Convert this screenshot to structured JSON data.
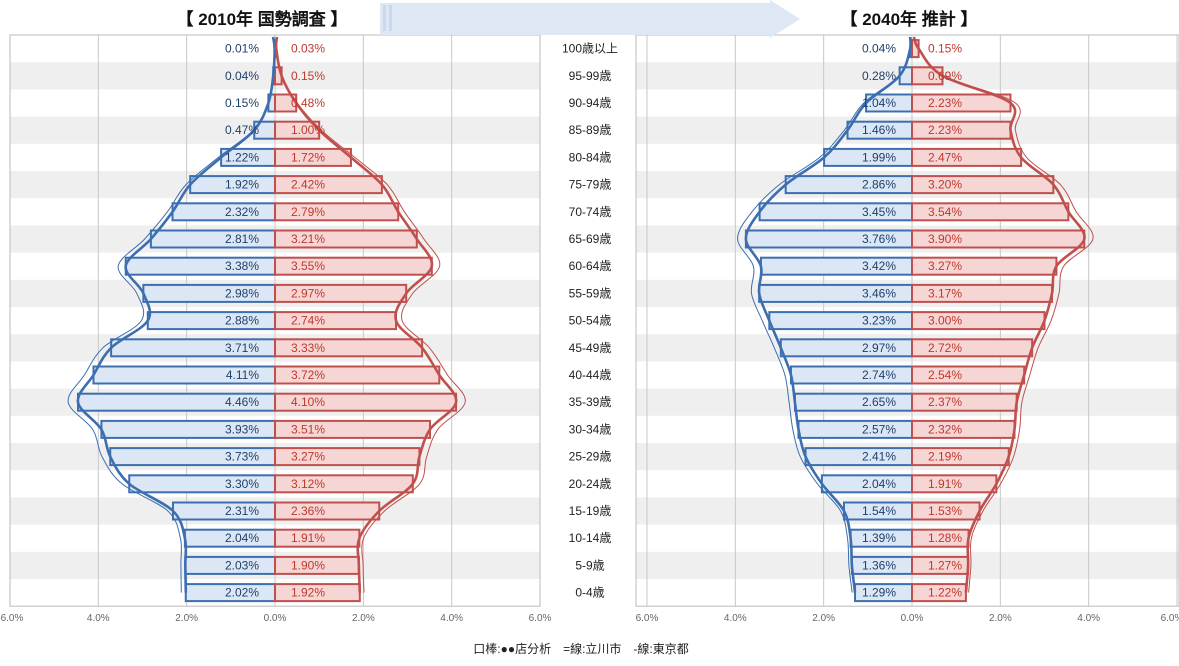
{
  "chart_data": {
    "type": "bar",
    "categories": [
      "100歳以上",
      "95-99歳",
      "90-94歳",
      "85-89歳",
      "80-84歳",
      "75-79歳",
      "70-74歳",
      "65-69歳",
      "60-64歳",
      "55-59歳",
      "50-54歳",
      "45-49歳",
      "40-44歳",
      "35-39歳",
      "30-34歳",
      "25-29歳",
      "20-24歳",
      "15-19歳",
      "10-14歳",
      "5-9歳",
      "0-4歳"
    ],
    "x_ticks": [
      "6.0%",
      "4.0%",
      "2.0%",
      "0.0%",
      "2.0%",
      "4.0%",
      "6.0%"
    ],
    "xlim": [
      -6,
      6
    ],
    "panels": [
      {
        "title": "【 2010年 国勢調査 】",
        "male": [
          0.01,
          0.04,
          0.15,
          0.47,
          1.22,
          1.92,
          2.32,
          2.81,
          3.38,
          2.98,
          2.88,
          3.71,
          4.11,
          4.46,
          3.93,
          3.73,
          3.3,
          2.31,
          2.04,
          2.03,
          2.02
        ],
        "female": [
          0.03,
          0.15,
          0.48,
          1.0,
          1.72,
          2.42,
          2.79,
          3.21,
          3.55,
          2.97,
          2.74,
          3.33,
          3.72,
          4.1,
          3.51,
          3.27,
          3.12,
          2.36,
          1.91,
          1.9,
          1.92
        ],
        "male_labels": [
          "0.01%",
          "0.04%",
          "0.15%",
          "0.47%",
          "1.22%",
          "1.92%",
          "2.32%",
          "2.81%",
          "3.38%",
          "2.98%",
          "2.88%",
          "3.71%",
          "4.11%",
          "4.46%",
          "3.93%",
          "3.73%",
          "3.30%",
          "2.31%",
          "2.04%",
          "2.03%",
          "2.02%"
        ],
        "female_labels": [
          "0.03%",
          "0.15%",
          "0.48%",
          "1.00%",
          "1.72%",
          "2.42%",
          "2.79%",
          "3.21%",
          "3.55%",
          "2.97%",
          "2.74%",
          "3.33%",
          "3.72%",
          "4.10%",
          "3.51%",
          "3.27%",
          "3.12%",
          "2.36%",
          "1.91%",
          "1.90%",
          "1.92%"
        ]
      },
      {
        "title": "【 2040年 推計 】",
        "male": [
          0.04,
          0.28,
          1.04,
          1.46,
          1.99,
          2.86,
          3.45,
          3.76,
          3.42,
          3.46,
          3.23,
          2.97,
          2.74,
          2.65,
          2.57,
          2.41,
          2.04,
          1.54,
          1.39,
          1.36,
          1.29
        ],
        "female": [
          0.15,
          0.69,
          2.23,
          2.23,
          2.47,
          3.2,
          3.54,
          3.9,
          3.27,
          3.17,
          3.0,
          2.72,
          2.54,
          2.37,
          2.32,
          2.19,
          1.91,
          1.53,
          1.28,
          1.27,
          1.22
        ],
        "male_labels": [
          "0.04%",
          "0.28%",
          "1.04%",
          "1.46%",
          "1.99%",
          "2.86%",
          "3.45%",
          "3.76%",
          "3.42%",
          "3.46%",
          "3.23%",
          "2.97%",
          "2.74%",
          "2.65%",
          "2.57%",
          "2.41%",
          "2.04%",
          "1.54%",
          "1.39%",
          "1.36%",
          "1.29%"
        ],
        "female_labels": [
          "0.15%",
          "0.69%",
          "2.23%",
          "2.23%",
          "2.47%",
          "3.20%",
          "3.54%",
          "3.90%",
          "3.27%",
          "3.17%",
          "3.00%",
          "2.72%",
          "2.54%",
          "2.37%",
          "2.32%",
          "2.19%",
          "1.91%",
          "1.53%",
          "1.28%",
          "1.27%",
          "1.22%"
        ]
      }
    ],
    "legend": "口棒:●●店分析　=線:立川市　-線:東京都"
  },
  "colors": {
    "male_stroke": "#3d6fb0",
    "male_fill": "#dbe7f5",
    "female_stroke": "#c0504d",
    "female_fill": "#f6d5d5",
    "label_male_text": "#1f3f6b",
    "label_female_text": "#c0392b",
    "band": "#efefef",
    "grid": "#c8c8c8",
    "arrow": "#dde8f4"
  }
}
